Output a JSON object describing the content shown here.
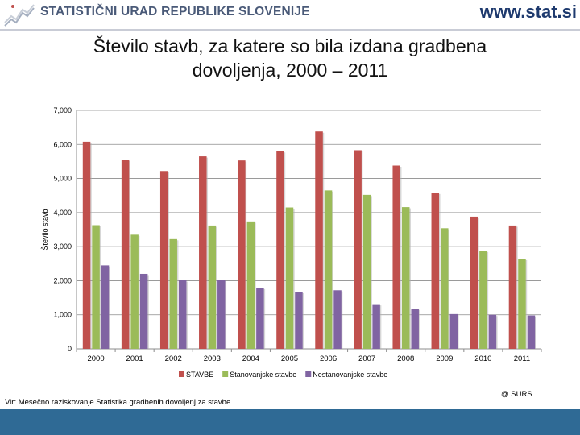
{
  "header": {
    "organization": "STATISTIČNI URAD REPUBLIKE SLOVENIJE",
    "website": "www.stat.si",
    "logo_icon": "surs-logo-icon"
  },
  "title_line1": "Število stavb, za katere so bila izdana gradbena",
  "title_line2": "dovoljenja, 2000 – 2011",
  "source": "Vir: Mesečno raziskovanje Statistika gradbenih dovoljenj za stavbe",
  "copyright": "@ SURS",
  "chart_data": {
    "type": "bar",
    "title": "Število stavb, za katere so bila izdana gradbena dovoljenja, 2000 – 2011",
    "xlabel": "",
    "ylabel": "Število stavb",
    "ylim": [
      0,
      7000
    ],
    "yticks": [
      "0",
      "1,000",
      "2,000",
      "3,000",
      "4,000",
      "5,000",
      "6,000",
      "7,000"
    ],
    "grid": true,
    "legend_position": "bottom",
    "categories": [
      "2000",
      "2001",
      "2002",
      "2003",
      "2004",
      "2005",
      "2006",
      "2007",
      "2008",
      "2009",
      "2010",
      "2011"
    ],
    "series": [
      {
        "name": "STAVBE",
        "color": "#c0504d",
        "values": [
          6080,
          5550,
          5220,
          5650,
          5530,
          5800,
          6380,
          5830,
          5380,
          4580,
          3880,
          3620
        ]
      },
      {
        "name": "Stanovanjske stavbe",
        "color": "#9bbb59",
        "values": [
          3630,
          3350,
          3220,
          3620,
          3740,
          4150,
          4650,
          4520,
          4160,
          3540,
          2880,
          2640
        ]
      },
      {
        "name": "Nestanovanjske stavbe",
        "color": "#8064a2",
        "values": [
          2450,
          2200,
          2010,
          2030,
          1790,
          1670,
          1720,
          1310,
          1180,
          1020,
          1000,
          980
        ]
      }
    ]
  }
}
